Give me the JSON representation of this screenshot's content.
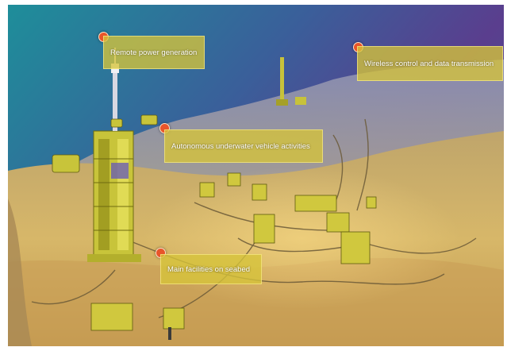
{
  "callouts": {
    "power": "Remote power generation",
    "wireless": "Wireless control and data transmission",
    "auv": "Autonomous underwater vehicle activities",
    "seabed": "Main facilities on seabed"
  },
  "colors": {
    "callout_fill": "#d6c43a",
    "marker": "#e8552a",
    "water": "#1c8a9a",
    "seabed": "#c9a85a"
  },
  "icons": [
    "marker-dot-icon"
  ]
}
